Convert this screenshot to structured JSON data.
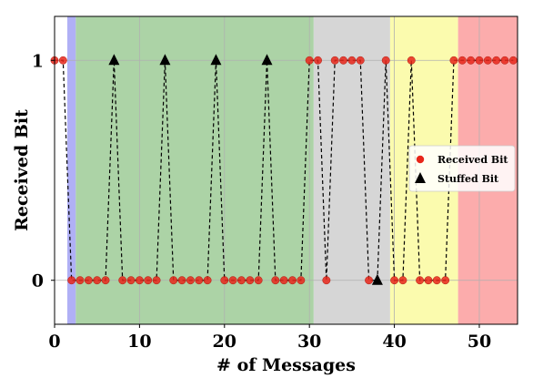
{
  "chart_data": {
    "type": "scatter",
    "title": "",
    "xlabel": "# of Messages",
    "ylabel": "Received Bit",
    "xlim": [
      0,
      54.5
    ],
    "ylim": [
      -0.2,
      1.2
    ],
    "xticks": [
      0,
      10,
      20,
      30,
      40,
      50
    ],
    "yticks": [
      0,
      1
    ],
    "grid": true,
    "legend_position": "center-right",
    "regions": [
      {
        "x0": 1.5,
        "x1": 2.5,
        "color": "#b0b0f5"
      },
      {
        "x0": 2.5,
        "x1": 30.5,
        "color": "#acd3a6"
      },
      {
        "x0": 30.5,
        "x1": 39.5,
        "color": "#d6d6d6"
      },
      {
        "x0": 39.5,
        "x1": 47.5,
        "color": "#fbfbae"
      },
      {
        "x0": 47.5,
        "x1": 54.5,
        "color": "#fcacac"
      }
    ],
    "series": [
      {
        "name": "Received Bit",
        "marker": "circle",
        "color": "#e8261a",
        "x": [
          0,
          1,
          2,
          3,
          4,
          5,
          6,
          8,
          9,
          10,
          11,
          12,
          14,
          15,
          16,
          17,
          18,
          20,
          21,
          22,
          23,
          24,
          26,
          27,
          28,
          29,
          30,
          31,
          32,
          33,
          34,
          35,
          36,
          37,
          39,
          40,
          41,
          42,
          43,
          44,
          45,
          46,
          47,
          48,
          49,
          50,
          51,
          52,
          53,
          54
        ],
        "y": [
          1,
          1,
          0,
          0,
          0,
          0,
          0,
          0,
          0,
          0,
          0,
          0,
          0,
          0,
          0,
          0,
          0,
          0,
          0,
          0,
          0,
          0,
          0,
          0,
          0,
          0,
          1,
          1,
          0,
          1,
          1,
          1,
          1,
          0,
          1,
          0,
          0,
          1,
          0,
          0,
          0,
          0,
          1,
          1,
          1,
          1,
          1,
          1,
          1,
          1
        ]
      },
      {
        "name": "Stuffed Bit",
        "marker": "triangle",
        "color": "#000000",
        "x": [
          7,
          13,
          19,
          25,
          38
        ],
        "y": [
          1,
          1,
          1,
          1,
          0
        ]
      }
    ]
  }
}
